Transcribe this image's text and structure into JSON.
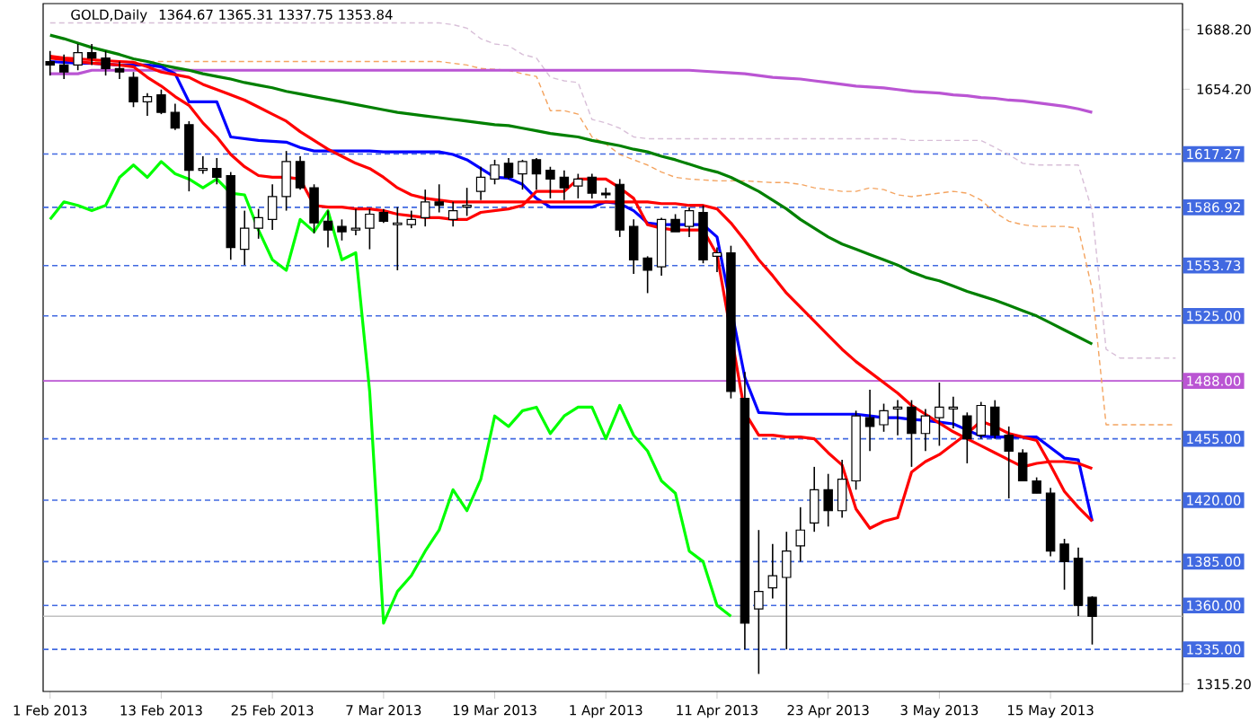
{
  "chart_data": {
    "type": "candlestick",
    "title": "GOLD,Daily",
    "subtitle": "1364.67 1365.31 1337.75 1353.84",
    "categories": [
      "1 Feb 2013",
      null,
      null,
      null,
      null,
      null,
      null,
      null,
      "13 Feb 2013",
      null,
      null,
      null,
      null,
      null,
      null,
      null,
      "25 Feb 2013",
      null,
      null,
      null,
      null,
      null,
      null,
      null,
      "7 Mar 2013",
      null,
      null,
      null,
      null,
      null,
      null,
      null,
      "19 Mar 2013",
      null,
      null,
      null,
      null,
      null,
      null,
      null,
      "1 Apr 2013",
      null,
      null,
      null,
      null,
      null,
      null,
      null,
      "11 Apr 2013",
      null,
      null,
      null,
      null,
      null,
      null,
      null,
      "23 Apr 2013",
      null,
      null,
      null,
      null,
      null,
      null,
      null,
      "3 May 2013",
      null,
      null,
      null,
      null,
      null,
      null,
      null,
      "15 May 2013",
      null,
      null,
      null,
      null,
      null,
      null,
      null,
      null,
      null
    ],
    "ohlc": [
      [
        1670,
        1676,
        1662,
        1668
      ],
      [
        1668,
        1674,
        1660,
        1664
      ],
      [
        1668,
        1680,
        1665,
        1675
      ],
      [
        1675,
        1680,
        1668,
        1672
      ],
      [
        1672,
        1676,
        1662,
        1666
      ],
      [
        1666,
        1670,
        1660,
        1664
      ],
      [
        1661,
        1664,
        1644,
        1647
      ],
      [
        1647,
        1652,
        1639,
        1650
      ],
      [
        1651,
        1654,
        1640,
        1641
      ],
      [
        1641,
        1646,
        1631,
        1632
      ],
      [
        1634,
        1636,
        1596,
        1608
      ],
      [
        1608,
        1616,
        1606,
        1609
      ],
      [
        1609,
        1615,
        1600,
        1604
      ],
      [
        1605,
        1607,
        1557,
        1564
      ],
      [
        1563,
        1585,
        1554,
        1575
      ],
      [
        1575,
        1586,
        1569,
        1581
      ],
      [
        1580,
        1600,
        1574,
        1593
      ],
      [
        1593,
        1619,
        1585,
        1613
      ],
      [
        1613,
        1616,
        1597,
        1598
      ],
      [
        1598,
        1600,
        1572,
        1578
      ],
      [
        1579,
        1585,
        1564,
        1574
      ],
      [
        1576,
        1580,
        1568,
        1573
      ],
      [
        1574,
        1586,
        1571,
        1575
      ],
      [
        1575,
        1586,
        1563,
        1583
      ],
      [
        1584,
        1586,
        1578,
        1579
      ],
      [
        1577,
        1587,
        1551,
        1578
      ],
      [
        1577,
        1585,
        1575,
        1580
      ],
      [
        1581,
        1597,
        1576,
        1590
      ],
      [
        1590,
        1600,
        1584,
        1588
      ],
      [
        1580,
        1590,
        1576,
        1585
      ],
      [
        1587,
        1598,
        1582,
        1588
      ],
      [
        1596,
        1610,
        1591,
        1604
      ],
      [
        1603,
        1614,
        1600,
        1611
      ],
      [
        1612,
        1615,
        1603,
        1604
      ],
      [
        1606,
        1614,
        1597,
        1613
      ],
      [
        1614,
        1615,
        1597,
        1606
      ],
      [
        1608,
        1610,
        1592,
        1603
      ],
      [
        1604,
        1608,
        1591,
        1598
      ],
      [
        1599,
        1606,
        1592,
        1603
      ],
      [
        1604,
        1606,
        1592,
        1595
      ],
      [
        1595,
        1598,
        1592,
        1594
      ],
      [
        1600,
        1603,
        1570,
        1574
      ],
      [
        1576,
        1580,
        1549,
        1557
      ],
      [
        1558,
        1559,
        1538,
        1551
      ],
      [
        1553,
        1581,
        1548,
        1580
      ],
      [
        1580,
        1583,
        1573,
        1573
      ],
      [
        1576,
        1587,
        1570,
        1585
      ],
      [
        1584,
        1588,
        1555,
        1557
      ],
      [
        1559,
        1564,
        1550,
        1561
      ],
      [
        1561,
        1565,
        1478,
        1482
      ],
      [
        1478,
        1493,
        1335,
        1350
      ],
      [
        1358,
        1403,
        1321,
        1368
      ],
      [
        1370,
        1395,
        1364,
        1377
      ],
      [
        1376,
        1402,
        1335,
        1391
      ],
      [
        1394,
        1416,
        1385,
        1403
      ],
      [
        1407,
        1439,
        1402,
        1426
      ],
      [
        1426,
        1435,
        1405,
        1414
      ],
      [
        1414,
        1443,
        1410,
        1432
      ],
      [
        1431,
        1471,
        1426,
        1468
      ],
      [
        1467,
        1483,
        1448,
        1462
      ],
      [
        1463,
        1475,
        1459,
        1471
      ],
      [
        1472,
        1477,
        1457,
        1473
      ],
      [
        1473,
        1477,
        1439,
        1458
      ],
      [
        1458,
        1472,
        1448,
        1468
      ],
      [
        1467,
        1487,
        1451,
        1473
      ],
      [
        1472,
        1479,
        1461,
        1473
      ],
      [
        1468,
        1470,
        1441,
        1455
      ],
      [
        1457,
        1476,
        1455,
        1474
      ],
      [
        1473,
        1477,
        1455,
        1457
      ],
      [
        1457,
        1462,
        1421,
        1448
      ],
      [
        1447,
        1449,
        1431,
        1431
      ],
      [
        1431,
        1433,
        1424,
        1424
      ],
      [
        1424,
        1427,
        1388,
        1391
      ],
      [
        1395,
        1398,
        1369,
        1385
      ],
      [
        1387,
        1393,
        1354,
        1360
      ],
      [
        1364.67,
        1365.31,
        1337.75,
        1353.84
      ],
      null,
      null,
      null,
      null,
      null,
      null
    ],
    "series": [
      {
        "type": "line",
        "color": "#f4a460",
        "line_style": "dashed",
        "values": [
          1670,
          1670,
          1670,
          1670,
          1670,
          1670,
          1670,
          1670,
          1670,
          1670,
          1670,
          1670,
          1670,
          1670,
          1670,
          1670,
          1670,
          1670,
          1670,
          1670,
          1670,
          1670,
          1670,
          1670,
          1670,
          1670,
          1670,
          1670,
          1670,
          1669,
          1668,
          1666,
          1665.5,
          1665,
          1663,
          1661.5,
          1642,
          1642,
          1640,
          1627,
          1623,
          1617,
          1614,
          1611,
          1607,
          1604,
          1603,
          1602.5,
          1602,
          1602,
          1602,
          1601.5,
          1601,
          1601,
          1600,
          1598,
          1597,
          1596,
          1596,
          1598,
          1597,
          1594,
          1593,
          1594,
          1595,
          1596,
          1595,
          1591,
          1584,
          1579,
          1577,
          1576,
          1576,
          1576,
          1575,
          1540,
          1463,
          1463,
          1463,
          1463,
          1463,
          1463
        ]
      },
      {
        "type": "line",
        "color": "#d8bfd8",
        "line_style": "dashed",
        "values": [
          1692,
          1692,
          1692,
          1692,
          1692,
          1692,
          1692,
          1692,
          1692,
          1692,
          1692,
          1692,
          1692,
          1692,
          1692,
          1692,
          1692,
          1692,
          1692,
          1692,
          1692,
          1692,
          1692,
          1692,
          1692,
          1692,
          1692,
          1692,
          1692,
          1691,
          1689,
          1683,
          1680,
          1679,
          1674,
          1672,
          1661,
          1659,
          1658,
          1637,
          1635,
          1632,
          1627,
          1626,
          1626,
          1626,
          1626,
          1626,
          1626,
          1626,
          1626,
          1626,
          1626,
          1626,
          1626,
          1626,
          1626,
          1626,
          1626,
          1626,
          1626,
          1626,
          1625,
          1625,
          1625,
          1625,
          1625,
          1625,
          1621,
          1617,
          1612,
          1611,
          1611,
          1611,
          1611,
          1585,
          1506,
          1501,
          1501,
          1501,
          1501,
          1501
        ]
      },
      {
        "type": "line",
        "color": "#ba55d3",
        "line_style": "solid",
        "values": [
          1663,
          1663,
          1663,
          1665,
          1665,
          1665,
          1665,
          1665,
          1665,
          1665,
          1665,
          1665,
          1665,
          1665,
          1665,
          1665,
          1665,
          1665,
          1665,
          1665,
          1665,
          1665,
          1665,
          1665,
          1665,
          1665,
          1665,
          1665,
          1665,
          1665,
          1665,
          1665,
          1665,
          1665,
          1665,
          1665,
          1665,
          1665,
          1665,
          1665,
          1665,
          1665,
          1665,
          1665,
          1665,
          1665,
          1665,
          1664.5,
          1664,
          1663.5,
          1663,
          1662,
          1661,
          1660.5,
          1660,
          1659,
          1658,
          1657,
          1656,
          1655.5,
          1655,
          1654,
          1653,
          1652.5,
          1652,
          1651,
          1650.5,
          1649.5,
          1649,
          1648,
          1647.5,
          1646.5,
          1645.5,
          1644.5,
          1643,
          1641,
          null,
          null,
          null,
          null,
          null,
          null
        ]
      },
      {
        "type": "line",
        "color": "#008000",
        "line_style": "solid",
        "values": [
          1685,
          1683,
          1680.5,
          1678,
          1676,
          1674,
          1671.5,
          1670,
          1668,
          1666.5,
          1665,
          1663,
          1661.5,
          1660,
          1658,
          1656.5,
          1655,
          1653,
          1651.5,
          1650,
          1648.5,
          1647,
          1645.5,
          1644,
          1642.5,
          1641,
          1640,
          1639,
          1638,
          1637,
          1636,
          1635,
          1634,
          1633.5,
          1632,
          1630.5,
          1629,
          1628,
          1627,
          1625,
          1623.5,
          1622,
          1620,
          1618.5,
          1616,
          1614,
          1611.5,
          1609,
          1607,
          1604,
          1600,
          1596,
          1591,
          1586,
          1580,
          1575,
          1570,
          1566,
          1563,
          1560,
          1557,
          1554,
          1550,
          1547,
          1545,
          1542,
          1539,
          1536.5,
          1534,
          1531,
          1528,
          1525,
          1521,
          1517,
          1513,
          1509,
          null,
          null,
          null,
          null,
          null,
          null
        ]
      },
      {
        "type": "line",
        "color": "#00ff00",
        "line_style": "solid",
        "values": [
          1580,
          1590,
          1588,
          1585,
          1588,
          1604,
          1611,
          1604,
          1613,
          1606,
          1603,
          1598,
          1603,
          1595,
          1594,
          1574,
          1557,
          1551,
          1580,
          1573,
          1585,
          1557,
          1561,
          1482,
          1350,
          1368,
          1377,
          1391,
          1403,
          1426,
          1414,
          1432,
          1468,
          1462,
          1471,
          1473,
          1458,
          1468,
          1473,
          1473,
          1455,
          1474,
          1457,
          1448,
          1431,
          1424,
          1391,
          1385,
          1360,
          1353.84,
          null,
          null,
          null,
          null,
          null,
          null,
          null,
          null,
          null,
          null,
          null,
          null,
          null,
          null,
          null,
          null,
          null,
          null,
          null,
          null,
          null,
          null,
          null,
          null,
          null,
          null,
          null,
          null,
          null,
          null,
          null,
          null
        ]
      },
      {
        "type": "line",
        "color": "#0000ff",
        "line_style": "solid",
        "values": [
          1670,
          1669.5,
          1669,
          1669,
          1668.5,
          1668,
          1668,
          1668,
          1667,
          1663,
          1647,
          1647,
          1647,
          1627,
          1626,
          1625,
          1624.5,
          1624,
          1621,
          1619,
          1619,
          1619,
          1619,
          1619,
          1618.5,
          1618.5,
          1618.5,
          1618.5,
          1618.5,
          1617,
          1614,
          1609,
          1604,
          1603.5,
          1600,
          1592,
          1587,
          1587,
          1587,
          1587,
          1590,
          1589,
          1585,
          1578,
          1577,
          1577,
          1577,
          1577,
          1570,
          null,
          1490,
          1470,
          1469.5,
          1469,
          1469,
          1469,
          1469,
          1469,
          1469,
          1468,
          1467,
          1467,
          1466,
          1465.5,
          1464.5,
          1463.5,
          1460,
          1456.5,
          1456,
          1456,
          1456,
          1456,
          1450,
          1444,
          1443,
          1408,
          null,
          null,
          null,
          null,
          null,
          null
        ]
      },
      {
        "type": "line",
        "color": "#ff0000",
        "line_style": "solid",
        "values": [
          1672,
          1671,
          1670,
          1669,
          1668.5,
          1668,
          1667,
          1661,
          1656,
          1650,
          1645,
          1635,
          1627,
          1617,
          1610,
          1605,
          1604,
          1604,
          1603,
          1588,
          1587,
          1587,
          1586,
          1586,
          1585,
          1583,
          1582,
          1581,
          1581,
          1580,
          1580,
          1584,
          1585,
          1586,
          1588,
          1596,
          1596,
          1596,
          1603,
          1603,
          1603,
          1598,
          1592,
          1577,
          1575,
          1574,
          1574,
          1574,
          1560,
          null,
          1470,
          1457,
          1457,
          1456,
          1456,
          1455,
          1447,
          1440,
          1415,
          1404,
          1408,
          1410,
          1436,
          1442,
          1446,
          1452,
          1458,
          1465,
          1462,
          1458,
          1456,
          1454,
          1440,
          1425,
          1416,
          1408,
          null,
          null,
          null,
          null,
          null,
          null
        ]
      },
      {
        "type": "line",
        "color": "#ff0000",
        "line_style": "solid",
        "values": [
          1673,
          1672,
          1671.5,
          1671,
          1670.5,
          1670,
          1669.5,
          1667,
          1664,
          1662.5,
          1661,
          1657,
          1654,
          1651,
          1648,
          1644,
          1640,
          1636,
          1630,
          1625,
          1620,
          1616,
          1612,
          1609,
          1604,
          1598,
          1594,
          1592,
          1591,
          1590,
          1590,
          1590,
          1590,
          1590,
          1590,
          1590,
          1590,
          1590,
          1590,
          1590,
          1590,
          1590,
          1590,
          1590,
          1589,
          1589,
          1588,
          1588,
          1586,
          1578,
          1568,
          1557,
          1548,
          1538,
          1530,
          1522,
          1514,
          1506,
          1499,
          1493,
          1487,
          1481,
          1474,
          1469,
          1464,
          1459,
          1455,
          1451,
          1447,
          1443,
          1439,
          1441,
          1442,
          1442,
          1441,
          1438,
          null,
          null,
          null,
          null,
          null,
          null
        ]
      }
    ],
    "ylim": [
      1311,
      1703
    ],
    "yticks": [
      {
        "value": 1688.2,
        "label": "1688.20"
      },
      {
        "value": 1654.2,
        "label": "1654.20"
      },
      {
        "value": 1315.2,
        "label": "1315.20"
      }
    ],
    "ref_lines": [
      {
        "axis": "y",
        "value": 1617.27,
        "label": "1617.27",
        "color": "#4169e1",
        "line_style": "dashed"
      },
      {
        "axis": "y",
        "value": 1586.92,
        "label": "1586.92",
        "color": "#4169e1",
        "line_style": "dashed"
      },
      {
        "axis": "y",
        "value": 1553.73,
        "label": "1553.73",
        "color": "#4169e1",
        "line_style": "dashed"
      },
      {
        "axis": "y",
        "value": 1525.0,
        "label": "1525.00",
        "color": "#4169e1",
        "line_style": "dashed"
      },
      {
        "axis": "y",
        "value": 1488.0,
        "label": "1488.00",
        "color": "#ba55d3",
        "line_style": "solid"
      },
      {
        "axis": "y",
        "value": 1455.0,
        "label": "1455.00",
        "color": "#4169e1",
        "line_style": "dashed"
      },
      {
        "axis": "y",
        "value": 1420.0,
        "label": "1420.00",
        "color": "#4169e1",
        "line_style": "dashed"
      },
      {
        "axis": "y",
        "value": 1385.0,
        "label": "1385.00",
        "color": "#4169e1",
        "line_style": "dashed"
      },
      {
        "axis": "y",
        "value": 1360.0,
        "label": "1360.00",
        "color": "#4169e1",
        "line_style": "dashed"
      },
      {
        "axis": "y",
        "value": 1353.84,
        "color": "#c0c0c0",
        "line_style": "solid"
      },
      {
        "axis": "y",
        "value": 1335.0,
        "label": "1335.00",
        "color": "#4169e1",
        "line_style": "dashed"
      }
    ]
  }
}
